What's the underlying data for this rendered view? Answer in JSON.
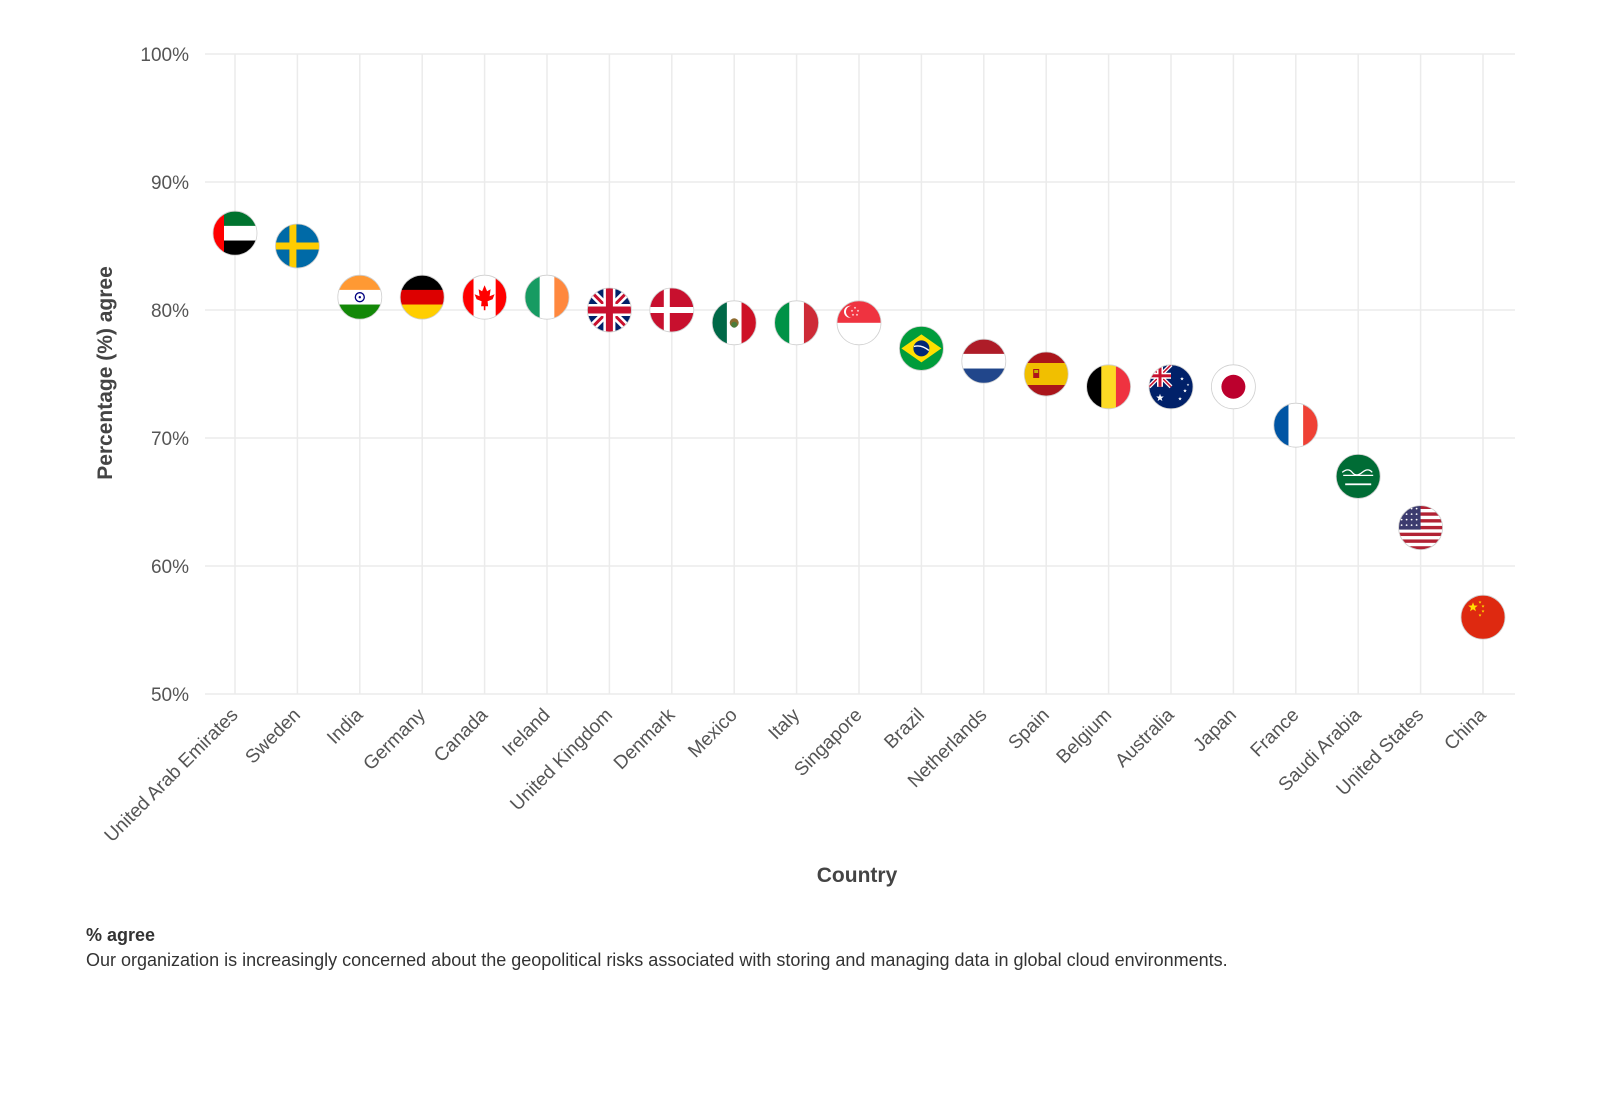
{
  "chart_data": {
    "type": "scatter",
    "title": "",
    "xlabel": "Country",
    "ylabel": "Percentage (%) agree",
    "ylim": [
      50,
      100
    ],
    "y_ticks": [
      "50%",
      "60%",
      "70%",
      "80%",
      "90%",
      "100%"
    ],
    "categories": [
      "United Arab Emirates",
      "Sweden",
      "India",
      "Germany",
      "Canada",
      "Ireland",
      "United Kingdom",
      "Denmark",
      "Mexico",
      "Italy",
      "Singapore",
      "Brazil",
      "Netherlands",
      "Spain",
      "Belgium",
      "Australia",
      "Japan",
      "France",
      "Saudi Arabia",
      "United States",
      "China"
    ],
    "values": [
      86,
      85,
      81,
      81,
      81,
      81,
      80,
      80,
      79,
      79,
      79,
      77,
      76,
      75,
      74,
      74,
      74,
      71,
      67,
      63,
      56
    ],
    "markers": [
      "flag-uae",
      "flag-sweden",
      "flag-india",
      "flag-germany",
      "flag-canada",
      "flag-ireland",
      "flag-uk",
      "flag-denmark",
      "flag-mexico",
      "flag-italy",
      "flag-singapore",
      "flag-brazil",
      "flag-netherlands",
      "flag-spain",
      "flag-belgium",
      "flag-australia",
      "flag-japan",
      "flag-france",
      "flag-saudi-arabia",
      "flag-usa",
      "flag-china"
    ]
  },
  "caption": {
    "title": "% agree",
    "text": "Our organization is increasingly concerned about the geopolitical risks associated with storing and managing data in global cloud environments."
  },
  "colors": {
    "grid": "#ebebeb",
    "text": "#555555"
  }
}
